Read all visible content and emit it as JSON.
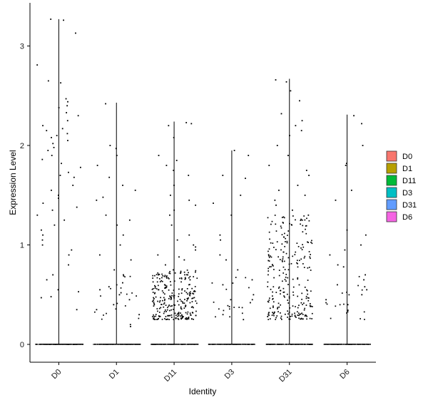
{
  "chart_data": {
    "type": "violin",
    "xlabel": "Identity",
    "ylabel": "Expression Level",
    "categories": [
      "D0",
      "D1",
      "D11",
      "D3",
      "D31",
      "D6"
    ],
    "ylim": [
      -0.17,
      3.42
    ],
    "yticks": [
      0,
      1,
      2,
      3
    ],
    "grid": false,
    "legend_position": "right",
    "legend": [
      {
        "label": "D0",
        "color": "#F8766D"
      },
      {
        "label": "D1",
        "color": "#B79F00"
      },
      {
        "label": "D11",
        "color": "#00BA38"
      },
      {
        "label": "D3",
        "color": "#00BFC4"
      },
      {
        "label": "D31",
        "color": "#619CFF"
      },
      {
        "label": "D6",
        "color": "#F564E3"
      }
    ],
    "series": [
      {
        "category": "D0",
        "max": 3.27,
        "zero_count": 120,
        "points": [
          3.26,
          3.13,
          3.27,
          2.81,
          2.65,
          2.63,
          2.47,
          2.44,
          2.4,
          2.38,
          2.33,
          2.3,
          2.25,
          2.2,
          2.17,
          2.15,
          2.12,
          2.1,
          2.08,
          2.05,
          2.02,
          1.98,
          1.95,
          1.9,
          1.86,
          1.82,
          1.78,
          1.73,
          1.7,
          1.68,
          1.6,
          1.55,
          1.5,
          1.47,
          1.42,
          1.38,
          1.35,
          1.3,
          1.25,
          1.2,
          1.15,
          1.1,
          1.05,
          1.0,
          0.95,
          0.9,
          0.8,
          0.7,
          0.65,
          0.55,
          0.53,
          0.48,
          0.47,
          0.35
        ]
      },
      {
        "category": "D1",
        "max": 2.43,
        "zero_count": 90,
        "points": [
          2.42,
          2.0,
          1.97,
          1.9,
          1.8,
          1.68,
          1.6,
          1.55,
          1.48,
          1.45,
          1.3,
          1.25,
          1.2,
          1.1,
          1.0,
          0.9,
          0.85,
          0.75,
          0.7,
          0.62,
          0.58,
          0.55,
          0.52,
          0.5,
          0.45,
          0.4,
          0.35,
          0.3,
          0.2,
          0.18
        ]
      },
      {
        "category": "D11",
        "max": 2.24,
        "zero_count": 90,
        "points": [
          2.23,
          2.22,
          2.2,
          2.08,
          1.9,
          1.85,
          1.8,
          1.75,
          1.7,
          1.6,
          1.5,
          1.45,
          1.4,
          1.35,
          1.3,
          1.2,
          1.1,
          1.05,
          1.0,
          0.98,
          0.95,
          0.9,
          0.88,
          0.85,
          0.8,
          0.75,
          0.7,
          0.65,
          0.6,
          0.58,
          0.55,
          0.5
        ]
      },
      {
        "category": "D3",
        "max": 1.95,
        "zero_count": 90,
        "points": [
          1.95,
          1.9,
          1.7,
          1.67,
          1.5,
          1.42,
          1.3,
          1.1,
          1.05,
          0.9,
          0.85,
          0.75,
          0.65,
          0.6,
          0.5,
          0.45,
          0.42,
          0.38,
          0.3,
          0.25
        ]
      },
      {
        "category": "D31",
        "max": 2.67,
        "zero_count": 90,
        "points": [
          2.66,
          2.64,
          2.55,
          2.45,
          2.32,
          2.25,
          2.2,
          2.15,
          2.1,
          2.0,
          1.9,
          1.8,
          1.75,
          1.7,
          1.6,
          1.55,
          1.5,
          1.45,
          1.4,
          1.35,
          1.3,
          1.25
        ]
      },
      {
        "category": "D6",
        "max": 2.31,
        "zero_count": 90,
        "points": [
          2.3,
          2.22,
          2.0,
          1.82,
          1.8,
          1.55,
          1.45,
          1.15,
          1.1,
          1.0,
          0.95,
          0.9,
          0.8,
          0.78,
          0.7,
          0.65,
          0.6,
          0.58,
          0.55,
          0.5,
          0.45,
          0.4
        ]
      }
    ]
  }
}
